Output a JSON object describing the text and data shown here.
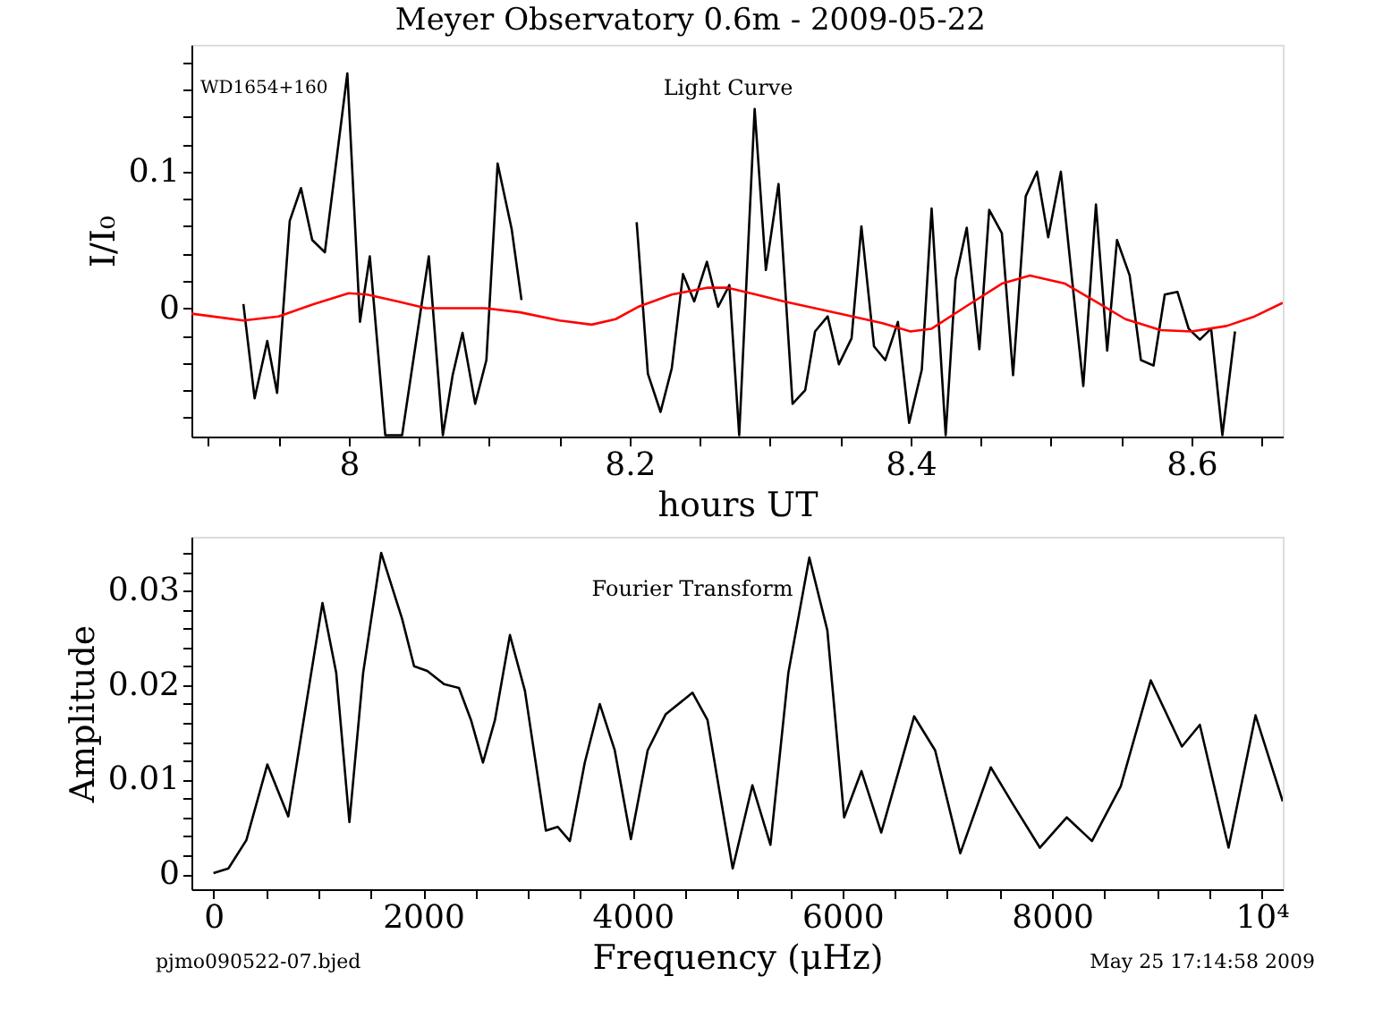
{
  "chart_data": [
    {
      "type": "line",
      "title": "Meyer Observatory 0.6m - 2009-05-22",
      "xlabel": "hours UT",
      "ylabel": "I/I₀",
      "annotations": [
        "WD1654+160",
        "Light Curve"
      ],
      "xlim": [
        7.888,
        8.665
      ],
      "ylim": [
        -0.094,
        0.193
      ],
      "xticks": [
        {
          "value": 7.9,
          "label": null
        },
        {
          "value": 7.95,
          "label": null
        },
        8,
        {
          "value": 8.05,
          "label": null
        },
        {
          "value": 8.1,
          "label": null
        },
        {
          "value": 8.15,
          "label": null
        },
        8.2,
        {
          "value": 8.25,
          "label": null
        },
        {
          "value": 8.3,
          "label": null
        },
        {
          "value": 8.35,
          "label": null
        },
        8.4,
        {
          "value": 8.45,
          "label": null
        },
        {
          "value": 8.5,
          "label": null
        },
        {
          "value": 8.55,
          "label": null
        },
        8.6,
        {
          "value": 8.65,
          "label": null
        }
      ],
      "yticks": [
        {
          "value": -0.08,
          "label": null
        },
        {
          "value": -0.06,
          "label": null
        },
        {
          "value": -0.04,
          "label": null
        },
        {
          "value": -0.02,
          "label": null
        },
        0,
        {
          "value": 0.02,
          "label": null
        },
        {
          "value": 0.04,
          "label": null
        },
        {
          "value": 0.06,
          "label": null
        },
        {
          "value": 0.08,
          "label": null
        },
        0.1,
        {
          "value": 0.12,
          "label": null
        },
        {
          "value": 0.14,
          "label": null
        },
        {
          "value": 0.16,
          "label": null
        },
        {
          "value": 0.18,
          "label": null
        }
      ],
      "grid": false,
      "marker": "none",
      "line_style": "solid",
      "series": [
        {
          "color": "#000000",
          "x": [
            7.925,
            7.933,
            7.942,
            7.949,
            7.958,
            7.966,
            7.974,
            7.983,
            7.999,
            8.008,
            8.015,
            8.026,
            8.038,
            8.057,
            8.067,
            8.074,
            8.081,
            8.09,
            8.098,
            8.106,
            8.116,
            8.123,
            8.16,
            8.205,
            8.213,
            8.222,
            8.23,
            8.238,
            8.246,
            8.255,
            8.263,
            8.271,
            8.278,
            8.289,
            8.297,
            8.306,
            8.316,
            8.325,
            8.332,
            8.341,
            8.349,
            8.358,
            8.365,
            8.374,
            8.382,
            8.391,
            8.399,
            8.408,
            8.415,
            8.425,
            8.432,
            8.44,
            8.449,
            8.456,
            8.465,
            8.473,
            8.482,
            8.49,
            8.498,
            8.507,
            8.515,
            8.523,
            8.532,
            8.54,
            8.547,
            8.556,
            8.564,
            8.573,
            8.581,
            8.59,
            8.598,
            8.606,
            8.614,
            8.622,
            8.631
          ],
          "values": [
            0.003,
            -0.066,
            -0.024,
            -0.062,
            0.064,
            0.088,
            0.05,
            0.041,
            0.172,
            -0.01,
            0.038,
            -0.093,
            -0.093,
            0.038,
            -0.093,
            -0.049,
            -0.018,
            -0.07,
            -0.038,
            0.106,
            0.058,
            0.006,
            null,
            0.063,
            -0.048,
            -0.076,
            -0.044,
            0.025,
            0.005,
            0.034,
            0.001,
            0.017,
            -0.093,
            0.146,
            0.028,
            0.091,
            -0.07,
            -0.06,
            -0.017,
            -0.006,
            -0.041,
            -0.022,
            0.06,
            -0.028,
            -0.038,
            -0.01,
            -0.084,
            -0.045,
            0.073,
            -0.093,
            0.021,
            0.059,
            -0.03,
            0.072,
            0.055,
            -0.049,
            0.082,
            0.1,
            0.052,
            0.1,
            0.021,
            -0.057,
            0.076,
            -0.031,
            0.05,
            0.024,
            -0.038,
            -0.042,
            0.01,
            0.012,
            -0.015,
            -0.023,
            -0.015,
            -0.093,
            -0.017
          ]
        },
        {
          "color": "#ff0000",
          "x": [
            7.888,
            7.925,
            7.95,
            7.975,
            8.0,
            8.013,
            8.035,
            8.055,
            8.097,
            8.122,
            8.15,
            8.173,
            8.19,
            8.206,
            8.23,
            8.255,
            8.27,
            8.29,
            8.31,
            8.35,
            8.38,
            8.4,
            8.415,
            8.442,
            8.465,
            8.485,
            8.51,
            8.53,
            8.553,
            8.578,
            8.6,
            8.625,
            8.645,
            8.665
          ],
          "values": [
            -0.004,
            -0.009,
            -0.006,
            0.003,
            0.011,
            0.01,
            0.005,
            0.0,
            0.0,
            -0.003,
            -0.009,
            -0.012,
            -0.008,
            0.001,
            0.01,
            0.015,
            0.015,
            0.01,
            0.005,
            -0.004,
            -0.011,
            -0.017,
            -0.015,
            0.003,
            0.018,
            0.024,
            0.018,
            0.006,
            -0.008,
            -0.016,
            -0.017,
            -0.013,
            -0.006,
            0.004
          ]
        }
      ]
    },
    {
      "type": "line",
      "xlabel": "Frequency (μHz)",
      "ylabel": "Amplitude",
      "annotations": [
        "Fourier Transform",
        "pjmo090522-07.bjed",
        "May 25 17:14:58 2009"
      ],
      "xlim": [
        -210,
        10200
      ],
      "ylim": [
        -0.0016,
        0.0357
      ],
      "xticks": [
        0,
        {
          "value": 500,
          "label": null
        },
        {
          "value": 1000,
          "label": null
        },
        {
          "value": 1500,
          "label": null
        },
        2000,
        {
          "value": 2500,
          "label": null
        },
        {
          "value": 3000,
          "label": null
        },
        {
          "value": 3500,
          "label": null
        },
        4000,
        {
          "value": 4500,
          "label": null
        },
        {
          "value": 5000,
          "label": null
        },
        {
          "value": 5500,
          "label": null
        },
        6000,
        {
          "value": 6500,
          "label": null
        },
        {
          "value": 7000,
          "label": null
        },
        {
          "value": 7500,
          "label": null
        },
        8000,
        {
          "value": 8500,
          "label": null
        },
        {
          "value": 9000,
          "label": null
        },
        {
          "value": 9500,
          "label": null
        },
        {
          "value": 10000,
          "label": "10⁴"
        }
      ],
      "yticks": [
        0,
        {
          "value": 0.002,
          "label": null
        },
        {
          "value": 0.004,
          "label": null
        },
        {
          "value": 0.006,
          "label": null
        },
        {
          "value": 0.008,
          "label": null
        },
        0.01,
        {
          "value": 0.012,
          "label": null
        },
        {
          "value": 0.014,
          "label": null
        },
        {
          "value": 0.016,
          "label": null
        },
        {
          "value": 0.018,
          "label": null
        },
        0.02,
        {
          "value": 0.022,
          "label": null
        },
        {
          "value": 0.024,
          "label": null
        },
        {
          "value": 0.026,
          "label": null
        },
        {
          "value": 0.028,
          "label": null
        },
        0.03,
        {
          "value": 0.032,
          "label": null
        },
        {
          "value": 0.034,
          "label": null
        }
      ],
      "grid": false,
      "marker": "none",
      "line_style": "solid",
      "series": [
        {
          "color": "#000000",
          "x": [
            0,
            143,
            314,
            514,
            714,
            885,
            1040,
            1171,
            1297,
            1428,
            1600,
            1800,
            1914,
            2040,
            2200,
            2342,
            2457,
            2571,
            2685,
            2828,
            2971,
            3171,
            3285,
            3400,
            3542,
            3685,
            3828,
            3982,
            4142,
            4313,
            4570,
            4713,
            4828,
            4953,
            5141,
            5313,
            5484,
            5684,
            5856,
            6016,
            6181,
            6370,
            6684,
            6884,
            7124,
            7415,
            7626,
            7883,
            8140,
            8380,
            8655,
            8941,
            9238,
            9409,
            9683,
            9940,
            10200
          ],
          "values": [
            0.0001,
            0.0006,
            0.0036,
            0.0116,
            0.0061,
            0.018,
            0.0287,
            0.0213,
            0.0055,
            0.0213,
            0.034,
            0.027,
            0.022,
            0.0215,
            0.0201,
            0.0197,
            0.0163,
            0.0118,
            0.0163,
            0.0253,
            0.0194,
            0.0046,
            0.005,
            0.0035,
            0.0118,
            0.018,
            0.0131,
            0.0037,
            0.0131,
            0.0169,
            0.0192,
            0.0163,
            0.0087,
            0.0006,
            0.0094,
            0.0031,
            0.0213,
            0.0335,
            0.0258,
            0.006,
            0.0109,
            0.0044,
            0.0167,
            0.0131,
            0.0022,
            0.0113,
            0.0074,
            0.0028,
            0.006,
            0.0035,
            0.0093,
            0.0205,
            0.0135,
            0.0158,
            0.0028,
            0.0168,
            0.0077
          ]
        }
      ]
    }
  ]
}
